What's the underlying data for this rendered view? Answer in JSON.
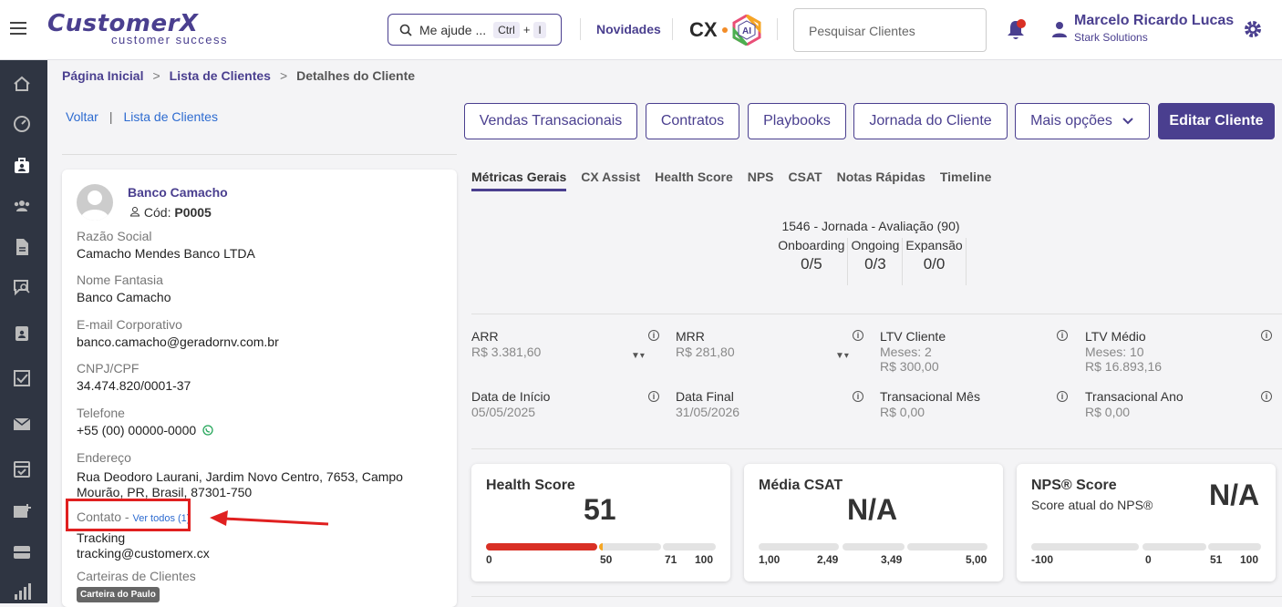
{
  "header": {
    "logo_main": "CustomerX",
    "logo_sub": "customer success",
    "help_placeholder": "Me ajude ...",
    "help_key1": "Ctrl",
    "help_plus": "+",
    "help_key2": "I",
    "novidades": "Novidades",
    "cx_text": "CX",
    "ai_text": "AI",
    "search_placeholder": "Pesquisar Clientes",
    "user_name": "Marcelo Ricardo Lucas",
    "user_company": "Stark Solutions",
    "brand_color": "#4a3f8f"
  },
  "sidebar": {
    "items": [
      "home-icon",
      "dashboard-icon",
      "clients-icon",
      "users-icon",
      "document-icon",
      "search-chat-icon",
      "clipboard-icon",
      "checkbox-icon",
      "mail-icon",
      "calendar-icon",
      "add-box-icon",
      "ticket-icon",
      "chart-icon"
    ],
    "active": "clients-icon"
  },
  "breadcrumb": {
    "home": "Página Inicial",
    "list": "Lista de Clientes",
    "current": "Detalhes do Cliente",
    "separator": ">"
  },
  "backlinks": {
    "back": "Voltar",
    "list": "Lista de Clientes"
  },
  "actions": {
    "vendas": "Vendas Transacionais",
    "contratos": "Contratos",
    "playbooks": "Playbooks",
    "jornada": "Jornada do Cliente",
    "mais": "Mais opções",
    "editar": "Editar Cliente"
  },
  "client": {
    "name": "Banco Camacho",
    "code_label": "Cód:",
    "code": "P0005",
    "razao_label": "Razão Social",
    "razao": "Camacho Mendes Banco LTDA",
    "fantasia_label": "Nome Fantasia",
    "fantasia": "Banco Camacho",
    "email_label": "E-mail Corporativo",
    "email": "banco.camacho@geradornv.com.br",
    "cnpj_label": "CNPJ/CPF",
    "cnpj": "34.474.820/0001-37",
    "telefone_label": "Telefone",
    "telefone": "+55 (00) 00000-0000",
    "endereco_label": "Endereço",
    "endereco_line1": "Rua Deodoro Laurani, Jardim Novo Centro, 7653, Campo",
    "endereco_line2": "Mourão, PR, Brasil, 87301-750",
    "contato_label": "Contato -",
    "contato_link": "Ver todos (1)",
    "contato_name": "Tracking",
    "contato_email": "tracking@customerx.cx",
    "carteiras_label": "Carteiras de Clientes",
    "carteira_tag": "Carteira do Paulo"
  },
  "tabs": [
    "Métricas Gerais",
    "CX Assist",
    "Health Score",
    "NPS",
    "CSAT",
    "Notas Rápidas",
    "Timeline"
  ],
  "jornada": {
    "title": "1546 - Jornada - Avaliação (90)",
    "cols": [
      {
        "h": "Onboarding",
        "v": "0/5"
      },
      {
        "h": "Ongoing",
        "v": "0/3"
      },
      {
        "h": "Expansão",
        "v": "0/0"
      }
    ]
  },
  "metrics": {
    "arr_t": "ARR",
    "arr_v": "R$ 3.381,60",
    "mrr_t": "MRR",
    "mrr_v": "R$ 281,80",
    "ltvc_t": "LTV Cliente",
    "ltvc_v1": "Meses: 2",
    "ltvc_v2": "R$ 300,00",
    "ltvm_t": "LTV Médio",
    "ltvm_v1": "Meses: 10",
    "ltvm_v2": "R$ 16.893,16",
    "inicio_t": "Data de Início",
    "inicio_v": "05/05/2025",
    "final_t": "Data Final",
    "final_v": "31/05/2026",
    "tmes_t": "Transacional Mês",
    "tmes_v": "R$ 0,00",
    "tano_t": "Transacional Ano",
    "tano_v": "R$ 0,00"
  },
  "cards": {
    "health": {
      "title": "Health Score",
      "value": "51",
      "labels": [
        "0",
        "50",
        "71",
        "100"
      ],
      "score": 51
    },
    "csat": {
      "title": "Média CSAT",
      "value": "N/A",
      "labels": [
        "1,00",
        "2,49",
        "3,49",
        "5,00"
      ]
    },
    "nps": {
      "title": "NPS® Score",
      "subtitle": "Score atual do NPS®",
      "value": "N/A",
      "labels": [
        "-100",
        "0",
        "51",
        "100"
      ]
    }
  }
}
